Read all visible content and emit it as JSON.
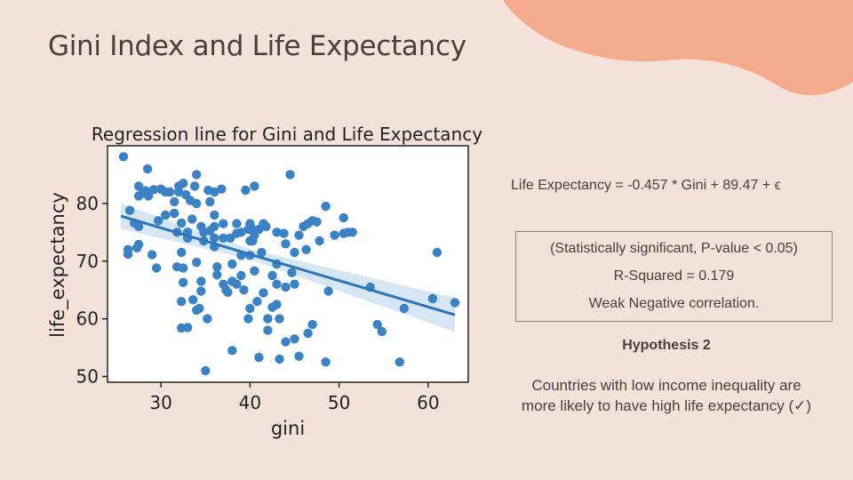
{
  "slide": {
    "title": "Gini Index and Life Expectancy",
    "colors": {
      "background": "#f4e1d9",
      "accent_blob": "#f4ab8c",
      "text": "#4a3f3a"
    }
  },
  "equation": "Life Expectancy = -0.457 * Gini + 89.47 + ϵ",
  "stats": {
    "line1": "(Statistically significant, P-value < 0.05)",
    "line2": "R-Squared = 0.179",
    "line3": "Weak Negative correlation."
  },
  "hypothesis": {
    "title": "Hypothesis 2",
    "line1": "Countries with low income inequality are",
    "line2": "more likely to have high life expectancy (✓)"
  },
  "chart_data": {
    "type": "scatter",
    "title": "Regression line for Gini and Life Expectancy",
    "xlabel": "gini",
    "ylabel": "life_expectancy",
    "xlim": [
      24,
      64.5
    ],
    "ylim": [
      49,
      90
    ],
    "xticks": [
      30,
      40,
      50,
      60
    ],
    "yticks": [
      50,
      60,
      70,
      80
    ],
    "grid": false,
    "point_color": "#3b82c4",
    "band_color": "#cfe2f1",
    "regression": {
      "slope": -0.457,
      "intercept": 89.47,
      "x_range": [
        25.5,
        63
      ]
    },
    "points": [
      [
        25.8,
        88.1
      ],
      [
        26.5,
        78.8
      ],
      [
        27.0,
        76.6
      ],
      [
        27.5,
        83.0
      ],
      [
        27.5,
        81.3
      ],
      [
        26.3,
        72.0
      ],
      [
        26.3,
        71.2
      ],
      [
        27.3,
        72.3
      ],
      [
        27.5,
        72.9
      ],
      [
        27.5,
        76.0
      ],
      [
        28.0,
        81.8
      ],
      [
        28.3,
        82.2
      ],
      [
        28.6,
        81.3
      ],
      [
        28.5,
        86.0
      ],
      [
        29.2,
        82.4
      ],
      [
        29.0,
        71.1
      ],
      [
        29.5,
        68.8
      ],
      [
        29.7,
        77.0
      ],
      [
        30.0,
        82.5
      ],
      [
        30.5,
        82.0
      ],
      [
        30.5,
        78.0
      ],
      [
        31.0,
        82.0
      ],
      [
        31.5,
        80.3
      ],
      [
        31.5,
        78.3
      ],
      [
        31.8,
        75.0
      ],
      [
        31.8,
        69.0
      ],
      [
        32.0,
        83.0
      ],
      [
        32.0,
        82.0
      ],
      [
        32.3,
        76.6
      ],
      [
        32.3,
        71.5
      ],
      [
        32.5,
        83.5
      ],
      [
        32.5,
        68.8
      ],
      [
        32.5,
        66.3
      ],
      [
        32.3,
        63.0
      ],
      [
        32.3,
        58.4
      ],
      [
        32.8,
        81.5
      ],
      [
        33.0,
        75.0
      ],
      [
        33.0,
        74.0
      ],
      [
        33.0,
        58.5
      ],
      [
        33.3,
        80.5
      ],
      [
        33.5,
        77.3
      ],
      [
        33.6,
        63.3
      ],
      [
        33.8,
        83.0
      ],
      [
        34.0,
        85.0
      ],
      [
        34.0,
        80.0
      ],
      [
        34.0,
        69.8
      ],
      [
        34.5,
        76.0
      ],
      [
        34.8,
        75.0
      ],
      [
        34.8,
        73.5
      ],
      [
        34.5,
        66.5
      ],
      [
        34.5,
        64.8
      ],
      [
        34.3,
        61.8
      ],
      [
        34.0,
        61.5
      ],
      [
        35.3,
        82.3
      ],
      [
        35.5,
        80.3
      ],
      [
        35.5,
        75.3
      ],
      [
        35.2,
        60.0
      ],
      [
        35.0,
        51.0
      ],
      [
        36.0,
        82.0
      ],
      [
        36.0,
        78.0
      ],
      [
        36.0,
        76.0
      ],
      [
        36.0,
        74.0
      ],
      [
        36.0,
        72.5
      ],
      [
        36.3,
        69.0
      ],
      [
        36.3,
        67.6
      ],
      [
        36.8,
        82.5
      ],
      [
        37.0,
        76.5
      ],
      [
        37.0,
        74.0
      ],
      [
        37.0,
        66.0
      ],
      [
        37.3,
        65.0
      ],
      [
        37.5,
        64.6
      ],
      [
        37.8,
        74.0
      ],
      [
        38.0,
        69.5
      ],
      [
        38.0,
        66.5
      ],
      [
        38.0,
        54.5
      ],
      [
        38.5,
        76.5
      ],
      [
        38.5,
        74.8
      ],
      [
        38.5,
        66.0
      ],
      [
        39.0,
        75.0
      ],
      [
        39.0,
        71.0
      ],
      [
        39.0,
        67.5
      ],
      [
        39.3,
        65.0
      ],
      [
        39.5,
        82.3
      ],
      [
        39.8,
        75.5
      ],
      [
        39.8,
        60.0
      ],
      [
        40.0,
        76.5
      ],
      [
        40.0,
        73.5
      ],
      [
        40.0,
        71.0
      ],
      [
        40.0,
        61.8
      ],
      [
        40.3,
        75.5
      ],
      [
        40.3,
        73.5
      ],
      [
        40.5,
        83.0
      ],
      [
        40.5,
        74.5
      ],
      [
        40.5,
        68.3
      ],
      [
        40.8,
        63.0
      ],
      [
        41.0,
        75.5
      ],
      [
        41.0,
        53.3
      ],
      [
        41.3,
        71.5
      ],
      [
        41.5,
        76.5
      ],
      [
        41.5,
        64.5
      ],
      [
        41.8,
        76.0
      ],
      [
        42.0,
        60.0
      ],
      [
        42.0,
        58.0
      ],
      [
        42.5,
        67.5
      ],
      [
        42.5,
        62.0
      ],
      [
        43.0,
        75.0
      ],
      [
        43.0,
        69.5
      ],
      [
        43.0,
        66.0
      ],
      [
        43.0,
        62.5
      ],
      [
        43.3,
        53.0
      ],
      [
        43.3,
        60.0
      ],
      [
        43.8,
        74.8
      ],
      [
        44.0,
        73.0
      ],
      [
        44.0,
        65.5
      ],
      [
        44.0,
        56.0
      ],
      [
        44.5,
        85.0
      ],
      [
        44.7,
        68.0
      ],
      [
        45.0,
        71.5
      ],
      [
        45.0,
        66.0
      ],
      [
        45.0,
        56.5
      ],
      [
        45.5,
        74.5
      ],
      [
        45.5,
        53.5
      ],
      [
        46.0,
        76.0
      ],
      [
        46.3,
        72.0
      ],
      [
        46.5,
        76.5
      ],
      [
        46.5,
        57.5
      ],
      [
        47.0,
        77.0
      ],
      [
        47.0,
        59.0
      ],
      [
        47.5,
        76.8
      ],
      [
        47.8,
        73.5
      ],
      [
        48.5,
        79.5
      ],
      [
        48.5,
        52.5
      ],
      [
        48.8,
        64.8
      ],
      [
        49.5,
        74.5
      ],
      [
        50.5,
        77.5
      ],
      [
        50.5,
        74.8
      ],
      [
        51.0,
        75.0
      ],
      [
        51.5,
        75.0
      ],
      [
        53.5,
        65.5
      ],
      [
        54.3,
        59.0
      ],
      [
        54.8,
        57.8
      ],
      [
        56.8,
        52.5
      ],
      [
        57.3,
        61.8
      ],
      [
        60.5,
        63.5
      ],
      [
        61.0,
        71.5
      ],
      [
        63.0,
        62.8
      ]
    ]
  }
}
